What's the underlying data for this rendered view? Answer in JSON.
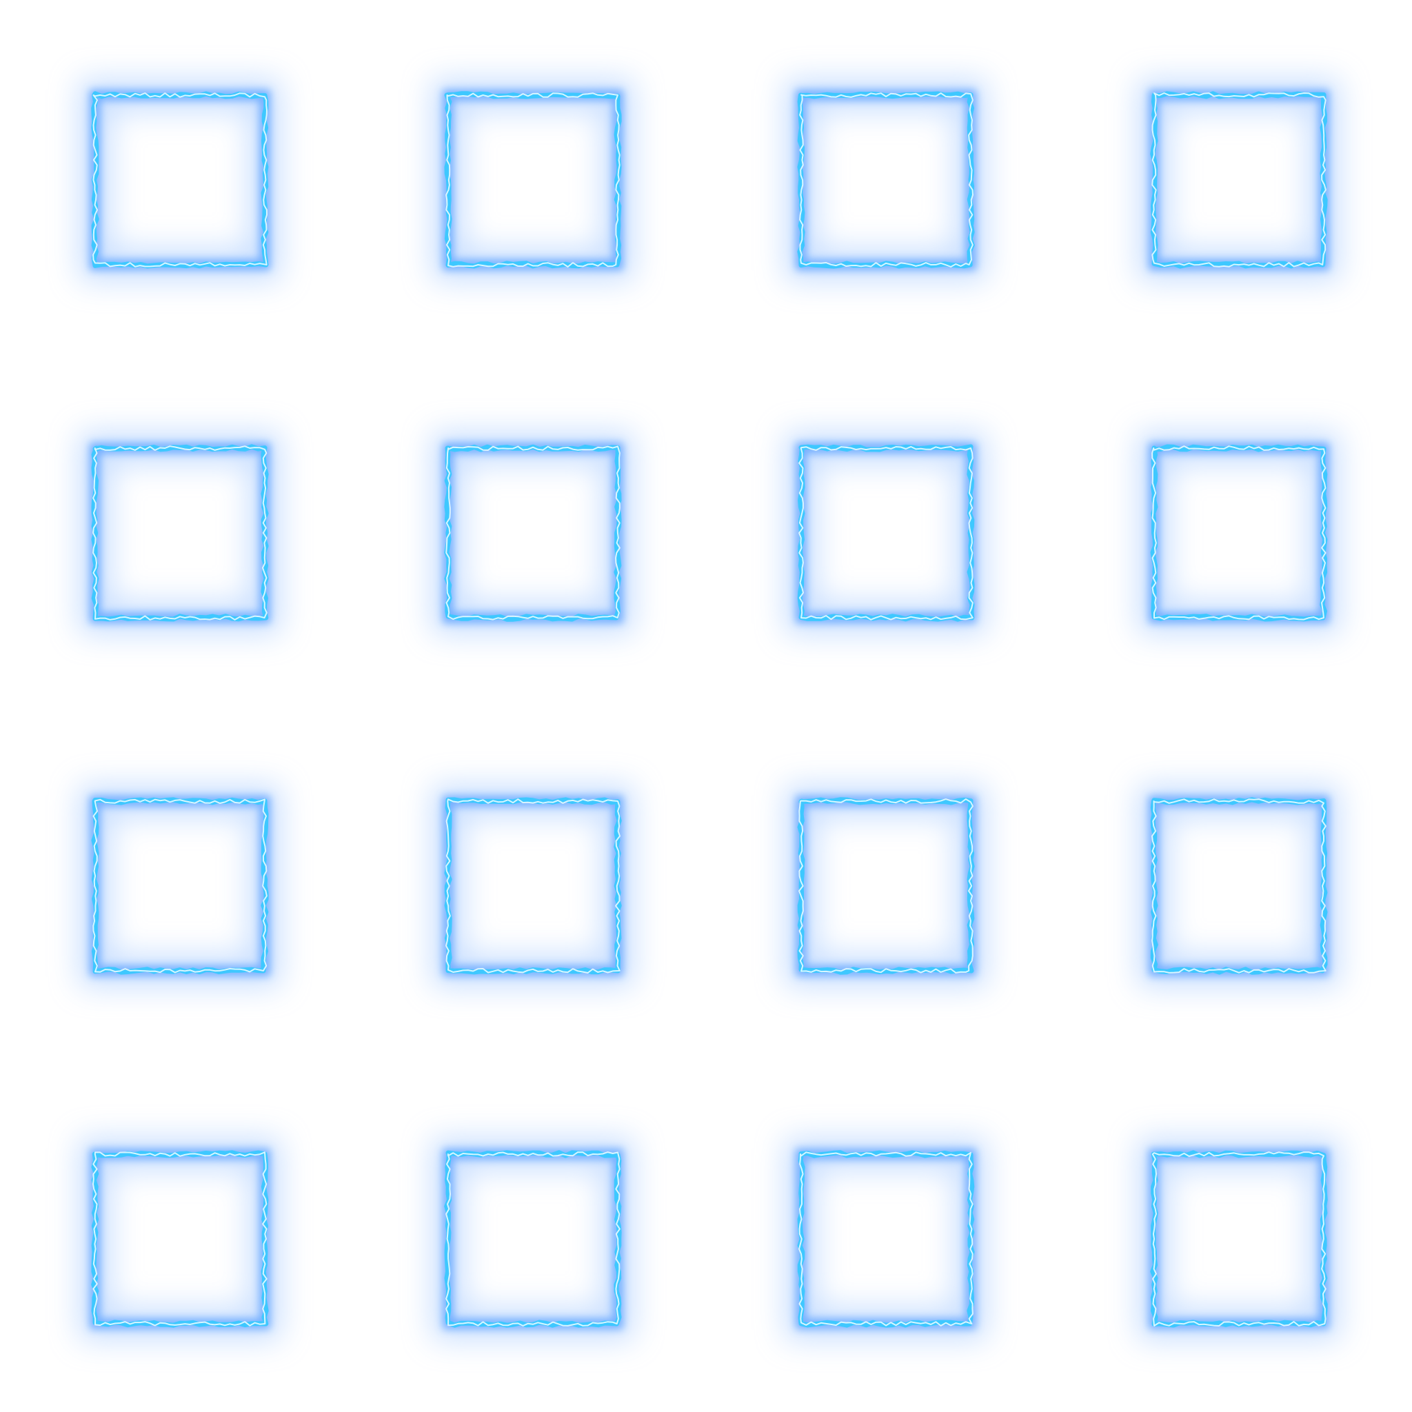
{
  "sprite_sheet": {
    "grid": {
      "rows": 4,
      "columns": 4
    },
    "frame_count": 16,
    "effect_icon": "electric-square-frame-icon",
    "colors": {
      "background": "#ffffff",
      "glow": "#5aa0ff",
      "outer_halo": "#9cc4ff",
      "core": "#3ec8ff",
      "highlight": "#e8fbff"
    }
  }
}
